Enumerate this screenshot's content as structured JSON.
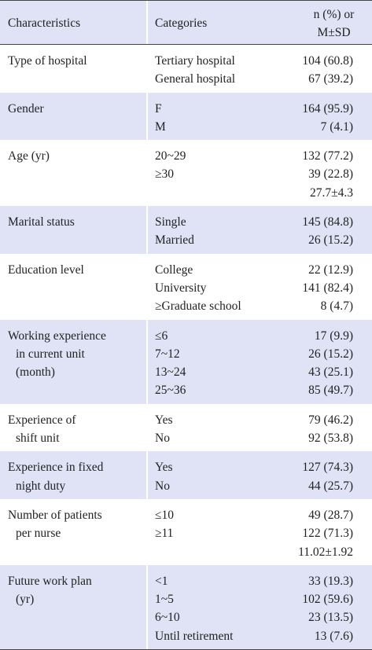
{
  "header": {
    "columns": [
      [
        "Characteristics"
      ],
      [
        "Categories"
      ],
      [
        "n (%) or",
        "M±SD"
      ]
    ]
  },
  "rows": [
    {
      "characteristic": [
        "Type of hospital"
      ],
      "categories": [
        "Tertiary hospital",
        "General hospital"
      ],
      "values": [
        "104 (60.8)",
        "67 (39.2)"
      ]
    },
    {
      "characteristic": [
        "Gender"
      ],
      "categories": [
        "F",
        "M"
      ],
      "values": [
        "164 (95.9)",
        "7 (4.1)"
      ]
    },
    {
      "characteristic": [
        "Age (yr)"
      ],
      "categories": [
        "20~29",
        "≥30"
      ],
      "values": [
        "132 (77.2)",
        "39 (22.8)",
        "27.7±4.3"
      ]
    },
    {
      "characteristic": [
        "Marital status"
      ],
      "categories": [
        "Single",
        "Married"
      ],
      "values": [
        "145 (84.8)",
        "26 (15.2)"
      ]
    },
    {
      "characteristic": [
        "Education level"
      ],
      "categories": [
        "College",
        "University",
        "≥Graduate school"
      ],
      "values": [
        "22 (12.9)",
        "141 (82.4)",
        "8 (4.7)"
      ]
    },
    {
      "characteristic": [
        "Working experience",
        "in current unit",
        "(month)"
      ],
      "categories": [
        "≤6",
        "7~12",
        "13~24",
        "25~36"
      ],
      "values": [
        "17 (9.9)",
        "26 (15.2)",
        "43 (25.1)",
        "85 (49.7)"
      ]
    },
    {
      "characteristic": [
        "Experience of",
        "shift unit"
      ],
      "categories": [
        "Yes",
        "No"
      ],
      "values": [
        "79 (46.2)",
        "92 (53.8)"
      ]
    },
    {
      "characteristic": [
        "Experience in fixed",
        "night duty"
      ],
      "categories": [
        "Yes",
        "No"
      ],
      "values": [
        "127 (74.3)",
        "44 (25.7)"
      ]
    },
    {
      "characteristic": [
        "Number of patients",
        "per nurse"
      ],
      "categories": [
        "≤10",
        "≥11"
      ],
      "values": [
        "49 (28.7)",
        "122 (71.3)",
        "11.02±1.92"
      ]
    },
    {
      "characteristic": [
        "Future work plan",
        "(yr)"
      ],
      "categories": [
        "<1",
        "1~5",
        "6~10",
        "Until retirement"
      ],
      "values": [
        "33 (19.3)",
        "102 (59.6)",
        "23 (13.5)",
        "13 (7.6)"
      ]
    }
  ]
}
